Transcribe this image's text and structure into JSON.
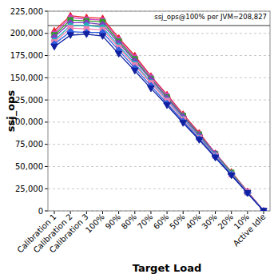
{
  "chart_data": {
    "type": "line",
    "x_label": "Target Load",
    "y_label": "ssj_ops",
    "categories": [
      "Calibration 1",
      "Calibration 2",
      "Calibration 3",
      "100%",
      "90%",
      "80%",
      "70%",
      "60%",
      "50%",
      "40%",
      "30%",
      "20%",
      "10%",
      "Active Idle"
    ],
    "series": [
      {
        "color": "#e8202a",
        "marker": "triangle",
        "values": [
          203000,
          220000,
          218000,
          217000,
          195000,
          175000,
          152000,
          131000,
          109000,
          88000,
          65000,
          44000,
          22000,
          0
        ]
      },
      {
        "color": "#d040c0",
        "marker": "circle",
        "values": [
          200000,
          218000,
          216000,
          215000,
          193000,
          173000,
          151000,
          130000,
          108000,
          87000,
          65000,
          43000,
          22000,
          0
        ]
      },
      {
        "color": "#30a030",
        "marker": "square",
        "values": [
          198000,
          215000,
          214000,
          213000,
          191000,
          171000,
          149000,
          128000,
          107000,
          86000,
          64000,
          43000,
          21000,
          0
        ]
      },
      {
        "color": "#8040c0",
        "marker": "diamond",
        "values": [
          196000,
          212000,
          212000,
          210000,
          189000,
          169000,
          148000,
          127000,
          106000,
          85000,
          64000,
          42000,
          21000,
          0
        ]
      },
      {
        "color": "#20b0c0",
        "marker": "circle",
        "values": [
          192000,
          209000,
          209000,
          207000,
          186000,
          166000,
          145000,
          125000,
          104000,
          83000,
          63000,
          42000,
          21000,
          0
        ]
      },
      {
        "color": "#f080b0",
        "marker": "square",
        "values": [
          190000,
          206000,
          205000,
          204000,
          184000,
          164000,
          144000,
          124000,
          103000,
          82000,
          62000,
          41000,
          21000,
          0
        ]
      },
      {
        "color": "#3060e0",
        "marker": "diamond",
        "values": [
          188000,
          202000,
          201000,
          201000,
          181000,
          161000,
          141000,
          121000,
          101000,
          81000,
          61000,
          41000,
          20000,
          0
        ]
      },
      {
        "color": "#1020a0",
        "marker": "triangle-down",
        "values": [
          185000,
          198000,
          199000,
          197000,
          177000,
          158000,
          138000,
          119000,
          99000,
          80000,
          60000,
          40000,
          20000,
          0
        ]
      }
    ],
    "ylim": [
      0,
      225000
    ],
    "yticks": [
      0,
      {
        "value": 25000,
        "label": "25,000"
      },
      {
        "value": 50000,
        "label": "50,000"
      },
      {
        "value": 75000,
        "label": "75,000"
      },
      {
        "value": 100000,
        "label": "100,000"
      },
      {
        "value": 125000,
        "label": "125,000"
      },
      {
        "value": 150000,
        "label": "150,000"
      },
      {
        "value": 175000,
        "label": "175,000"
      },
      {
        "value": 200000,
        "label": "200,000"
      },
      {
        "value": 225000,
        "label": "225,000"
      }
    ],
    "grid": true,
    "annotation": {
      "text": "ssj_ops@100% per JVM=208,827",
      "value": 208827
    }
  }
}
